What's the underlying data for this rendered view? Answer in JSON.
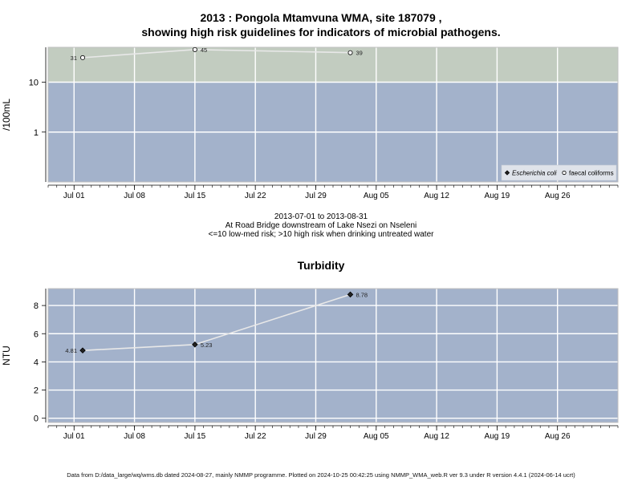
{
  "chart_data": [
    {
      "type": "line",
      "title_line1": "2013 : Pongola Mtamvuna WMA, site 187079 ,",
      "title_line2": "showing high risk guidelines for indicators of microbial pathogens.",
      "ylabel": "/100mL",
      "y_scale": "log",
      "ylim": [
        0.1,
        50
      ],
      "y_ticks": [
        "1",
        "10"
      ],
      "y_tick_values": [
        1,
        10
      ],
      "x_range": [
        "2013-06-28",
        "2013-09-02"
      ],
      "x_ticks": [
        "Jul 01",
        "Jul 08",
        "Jul 15",
        "Jul 22",
        "Jul 29",
        "Aug 05",
        "Aug 12",
        "Aug 19",
        "Aug 26"
      ],
      "x_tick_dates": [
        "2013-07-01",
        "2013-07-08",
        "2013-07-15",
        "2013-07-22",
        "2013-07-29",
        "2013-08-05",
        "2013-08-12",
        "2013-08-19",
        "2013-08-26"
      ],
      "guideline": 10,
      "band_colors": {
        "high_risk": "#c2ccc0",
        "low_risk": "#a3b2cb"
      },
      "legend_position": "bottom-right",
      "series": [
        {
          "name": "faecal coliforms",
          "marker": "open-circle",
          "x": [
            "2013-07-02",
            "2013-07-15",
            "2013-08-02"
          ],
          "y": [
            31,
            45,
            39
          ],
          "labels": [
            "31",
            "45",
            "39"
          ]
        }
      ],
      "legend": [
        {
          "label": "Escherichia coli",
          "marker": "filled-diamond"
        },
        {
          "label": "faecal coliforms",
          "marker": "open-circle"
        }
      ]
    },
    {
      "type": "line",
      "title": "Turbidity",
      "ylabel": "NTU",
      "ylim": [
        -0.3,
        9.2
      ],
      "y_ticks": [
        "0",
        "2",
        "4",
        "6",
        "8"
      ],
      "y_tick_values": [
        0,
        2,
        4,
        6,
        8
      ],
      "x_range": [
        "2013-06-28",
        "2013-09-02"
      ],
      "x_ticks": [
        "Jul 01",
        "Jul 08",
        "Jul 15",
        "Jul 22",
        "Jul 29",
        "Aug 05",
        "Aug 12",
        "Aug 19",
        "Aug 26"
      ],
      "x_tick_dates": [
        "2013-07-01",
        "2013-07-08",
        "2013-07-15",
        "2013-07-22",
        "2013-07-29",
        "2013-08-05",
        "2013-08-12",
        "2013-08-19",
        "2013-08-26"
      ],
      "bg_color": "#a3b2cb",
      "series": [
        {
          "name": "",
          "marker": "filled-diamond",
          "x": [
            "2013-07-02",
            "2013-07-15",
            "2013-08-02"
          ],
          "y": [
            4.81,
            5.23,
            8.78
          ],
          "labels": [
            "4.81",
            "5.23",
            "8.78"
          ]
        }
      ]
    }
  ],
  "subtitle": {
    "line1": "2013-07-01 to 2013-08-31",
    "line2": "At Road Bridge downstream of Lake Nsezi on Nseleni",
    "line3": "<=10 low-med risk; >10 high risk when drinking untreated water"
  },
  "footer": "Data from D:/data_large/wq/wms.db dated 2024-08-27, mainly NMMP programme. Plotted on 2024-10-25 00:42:25 using NMMP_WMA_web.R ver 9.3 under R version 4.4.1 (2024-06-14 ucrt)"
}
